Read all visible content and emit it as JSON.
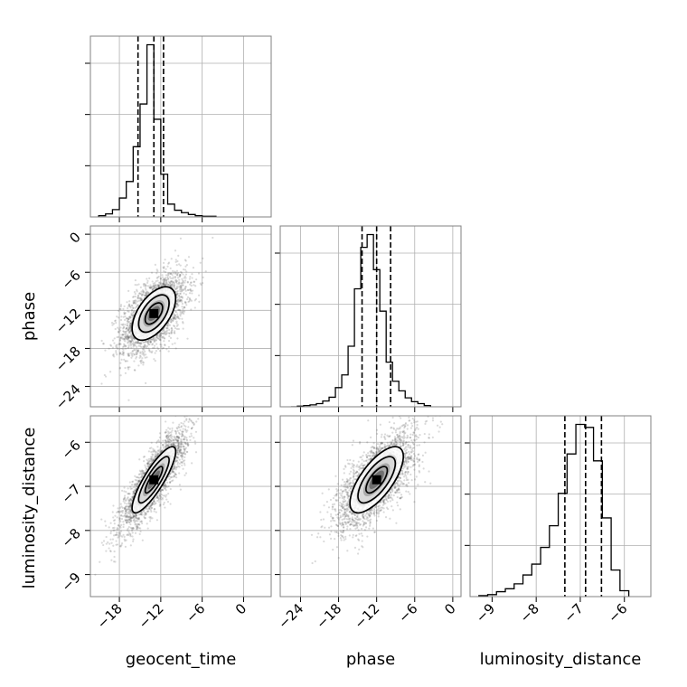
{
  "chart_data": {
    "type": "scatter",
    "title": "",
    "parameters": [
      "geocent_time",
      "phase",
      "luminosity_distance"
    ],
    "grid": true,
    "ranges": {
      "geocent_time": [
        -22.2,
        4.0
      ],
      "phase": [
        -27.2,
        1.3
      ],
      "luminosity_distance": [
        -9.5,
        -5.4
      ]
    },
    "ticks": {
      "geocent_time": {
        "values": [
          -18,
          -12,
          -6,
          0
        ],
        "labels": [
          "−18",
          "−12",
          "−6",
          "0"
        ]
      },
      "phase": {
        "values": [
          -24,
          -18,
          -12,
          -6,
          0
        ],
        "labels": [
          "−24",
          "−18",
          "−12",
          "−6",
          "0"
        ]
      },
      "luminosity_distance": {
        "values": [
          -9,
          -8,
          -7,
          -6
        ],
        "labels": [
          "−9",
          "−8",
          "−7",
          "−6"
        ]
      }
    },
    "quantiles": {
      "geocent_time": [
        -15.3,
        -13.0,
        -11.6
      ],
      "phase": [
        -14.3,
        -12.0,
        -9.8
      ],
      "luminosity_distance": [
        -7.35,
        -6.88,
        -6.52
      ]
    },
    "histograms": {
      "geocent_time": {
        "edges": [
          -21.0,
          -20.0,
          -19.0,
          -18.0,
          -17.0,
          -16.0,
          -15.0,
          -14.0,
          -13.0,
          -12.0,
          -11.0,
          -10.0,
          -9.0,
          -8.0,
          -7.0,
          -6.0,
          -5.0,
          -4.0
        ],
        "counts": [
          2,
          5,
          12,
          31,
          58,
          115,
          185,
          282,
          160,
          70,
          21,
          11,
          7,
          4,
          2,
          1,
          1
        ]
      },
      "phase": {
        "edges": [
          -25.5,
          -24.5,
          -23.5,
          -22.5,
          -21.5,
          -20.5,
          -19.5,
          -18.5,
          -17.5,
          -16.5,
          -15.5,
          -14.5,
          -13.5,
          -12.5,
          -11.5,
          -10.5,
          -9.5,
          -8.5,
          -7.5,
          -6.5,
          -5.5,
          -4.5,
          -3.5
        ],
        "counts": [
          0,
          1,
          2,
          3,
          5,
          9,
          15,
          30,
          50,
          95,
          185,
          250,
          270,
          215,
          150,
          70,
          40,
          25,
          14,
          8,
          5,
          2
        ]
      },
      "luminosity_distance": {
        "edges": [
          -9.3,
          -9.1,
          -8.9,
          -8.7,
          -8.5,
          -8.3,
          -8.1,
          -7.9,
          -7.7,
          -7.5,
          -7.3,
          -7.1,
          -6.9,
          -6.7,
          -6.5,
          -6.3,
          -6.1,
          -5.9
        ],
        "counts": [
          1,
          2,
          5,
          8,
          13,
          22,
          33,
          50,
          72,
          105,
          145,
          175,
          172,
          138,
          80,
          27,
          6
        ]
      }
    },
    "joint": {
      "phase_vs_geocent_time": {
        "mean": [
          -13.0,
          -12.5
        ],
        "sd": [
          2.1,
          2.8
        ],
        "corr": 0.55
      },
      "luminosity_distance_vs_geocent_time": {
        "mean": [
          -13.0,
          -6.85
        ],
        "sd": [
          2.1,
          0.5
        ],
        "corr": 0.85
      },
      "luminosity_distance_vs_phase": {
        "mean": [
          -12.0,
          -6.85
        ],
        "sd": [
          2.8,
          0.5
        ],
        "corr": 0.7
      }
    }
  }
}
